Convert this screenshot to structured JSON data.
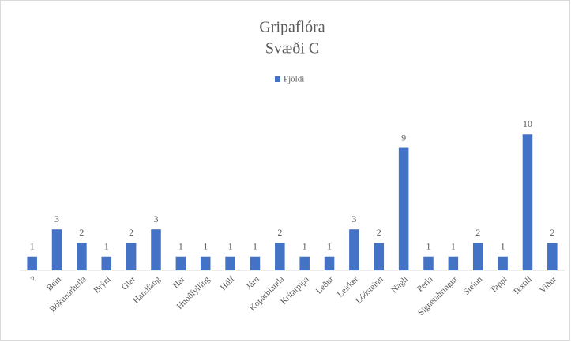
{
  "chart_data": {
    "type": "bar",
    "title": "Gripaflóra",
    "subtitle": "Svæði C",
    "categories": [
      "?",
      "Bein",
      "Bökunarhella",
      "Brýni",
      "Gler",
      "Handfang",
      "Hár",
      "Hnoðfylling",
      "Hólf",
      "Járn",
      "Koparblanda",
      "Krítarpípa",
      "Leður",
      "Leirker",
      "Lóðsteinn",
      "Nagli",
      "Perla",
      "Signetahringur",
      "Steinn",
      "Tappi",
      "Textíll",
      "Viður"
    ],
    "series": [
      {
        "name": "Fjöldi",
        "color": "#4472c4",
        "values": [
          1,
          3,
          2,
          1,
          2,
          3,
          1,
          1,
          1,
          1,
          2,
          1,
          1,
          3,
          2,
          9,
          1,
          1,
          2,
          1,
          10,
          2
        ]
      }
    ],
    "ylim": [
      0,
      11
    ],
    "legend": "top"
  }
}
